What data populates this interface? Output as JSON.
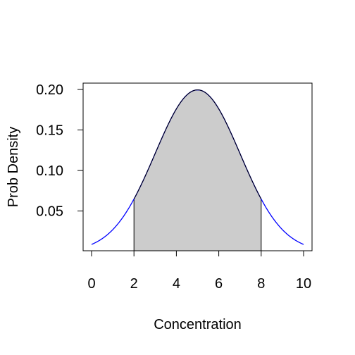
{
  "chart_data": {
    "type": "area",
    "title": "",
    "xlabel": "Concentration",
    "ylabel": "Prob Density",
    "distribution": "normal",
    "mean": 5,
    "sd": 2,
    "x_range": [
      0,
      10
    ],
    "shaded_interval": [
      2,
      8
    ],
    "xlim": [
      0,
      10
    ],
    "ylim": [
      0.0079,
      0.2
    ],
    "x_ticks": [
      0,
      2,
      4,
      6,
      8,
      10
    ],
    "x_tick_labels": [
      "0",
      "2",
      "4",
      "6",
      "8",
      "10"
    ],
    "y_ticks": [
      0.05,
      0.1,
      0.15,
      0.2
    ],
    "y_tick_labels": [
      "0.05",
      "0.10",
      "0.15",
      "0.20"
    ],
    "grid": false,
    "colors": {
      "full_curve": "#0000ff",
      "shaded_fill": "#cccccc",
      "shaded_outline": "#000000"
    }
  }
}
